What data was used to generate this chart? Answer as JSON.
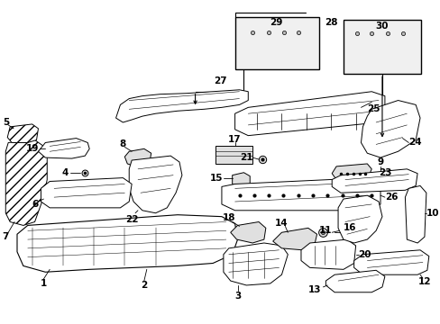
{
  "background_color": "#ffffff",
  "line_color": "#000000",
  "fig_width": 4.89,
  "fig_height": 3.6,
  "dpi": 100,
  "parts": {
    "floor_pan": {
      "fc": "#f0f0f0"
    },
    "bracket": {
      "fc": "#e8e8e8"
    },
    "detail_box": {
      "fc": "#f5f5f5"
    }
  }
}
